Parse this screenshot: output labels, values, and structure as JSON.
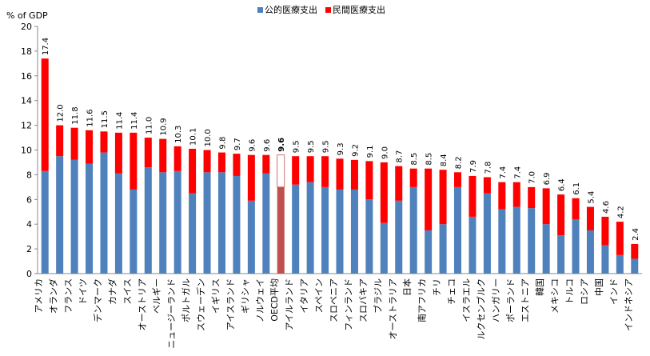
{
  "chart_data": {
    "type": "bar",
    "stacked": true,
    "ylabel": "% of GDP",
    "ylim": [
      0,
      20
    ],
    "yticks": [
      0,
      2,
      4,
      6,
      8,
      10,
      12,
      14,
      16,
      18,
      20
    ],
    "grid": false,
    "legend_position": "top-center",
    "colors": {
      "public": "#4f81bd",
      "private": "#ff0000",
      "oecd": "#c0504d",
      "oecd_edge": "#c0504d"
    },
    "series": [
      {
        "name": "公的医療支出",
        "values": [
          8.3,
          9.5,
          9.2,
          8.9,
          9.8,
          8.1,
          6.8,
          8.6,
          8.2,
          8.3,
          6.5,
          8.2,
          8.2,
          7.9,
          5.9,
          8.1,
          7.0,
          7.2,
          7.4,
          7.0,
          6.8,
          6.8,
          6.0,
          4.1,
          5.9,
          7.0,
          3.5,
          4.0,
          7.0,
          4.6,
          6.5,
          5.2,
          5.4,
          5.3,
          4.0,
          3.1,
          4.4,
          3.5,
          2.3,
          1.5,
          1.2
        ]
      },
      {
        "name": "民間医療支出",
        "values": [
          9.1,
          2.5,
          2.6,
          2.7,
          1.7,
          3.3,
          4.6,
          2.4,
          2.7,
          2.0,
          3.6,
          1.8,
          1.6,
          1.8,
          3.7,
          1.5,
          2.6,
          2.3,
          2.1,
          2.5,
          2.5,
          2.4,
          3.1,
          4.9,
          2.8,
          1.5,
          5.0,
          4.4,
          1.2,
          3.3,
          1.3,
          2.2,
          2.0,
          1.7,
          2.9,
          3.3,
          1.7,
          1.9,
          2.3,
          2.7,
          1.2
        ]
      }
    ],
    "categories": [
      "アメリカ",
      "オランダ",
      "フランス",
      "ドイツ",
      "デンマーク",
      "カナダ",
      "スイス",
      "オーストリア",
      "ベルギー",
      "ニュージーランド",
      "ポルトガル",
      "スウェーデン",
      "イギリス",
      "アイスランド",
      "ギリシャ",
      "ノルウェイ",
      "OECD平均",
      "アイルランド",
      "イタリア",
      "スペイン",
      "スロベニア",
      "フィンランド",
      "スロバキア",
      "ブラジル",
      "オーストラリア",
      "日本",
      "南アフリカ",
      "チリ",
      "チェコ",
      "イスラエル",
      "ルクセンブルク",
      "ハンガリー",
      "ポーランド",
      "エストニア",
      "韓国",
      "メキシコ",
      "トルコ",
      "ロシア",
      "中国",
      "インド",
      "インドネシア"
    ],
    "totals": [
      "17.4",
      "12.0",
      "11.8",
      "11.6",
      "11.5",
      "11.4",
      "11.4",
      "11.0",
      "10.9",
      "10.3",
      "10.1",
      "10.0",
      "9.8",
      "9.7",
      "9.6",
      "9.6",
      "9.6",
      "9.5",
      "9.5",
      "9.5",
      "9.3",
      "9.2",
      "9.1",
      "9.0",
      "8.7",
      "8.5",
      "8.5",
      "8.4",
      "8.2",
      "7.9",
      "7.8",
      "7.4",
      "7.4",
      "7.0",
      "6.9",
      "6.4",
      "6.1",
      "5.4",
      "4.6",
      "4.2",
      "2.4"
    ],
    "highlight_category": "OECD平均"
  }
}
